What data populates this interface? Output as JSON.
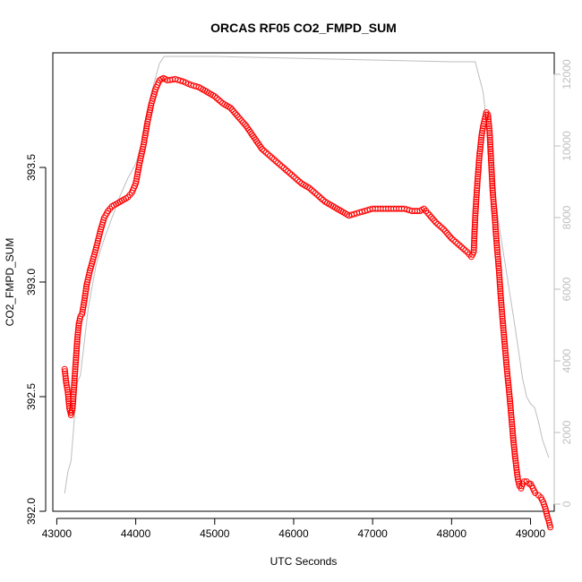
{
  "chart_data": {
    "type": "scatter",
    "title": "ORCAS RF05 CO2_FMPD_SUM",
    "xlabel": "UTC Seconds",
    "ylabel": "CO2_FMPD_SUM",
    "xlim": [
      42950,
      49300
    ],
    "ylim": [
      392.0,
      394.0
    ],
    "y2lim": [
      -200,
      12600
    ],
    "x_ticks": [
      43000,
      44000,
      45000,
      46000,
      47000,
      48000,
      49000
    ],
    "x_tick_labels": [
      "43000",
      "44000",
      "45000",
      "46000",
      "47000",
      "48000",
      "49000"
    ],
    "y_ticks": [
      392.0,
      392.5,
      393.0,
      393.5
    ],
    "y_tick_labels": [
      "392.0",
      "392.5",
      "393.0",
      "393.5"
    ],
    "y2_ticks": [
      0,
      2000,
      4000,
      6000,
      8000,
      10000,
      12000
    ],
    "y2_tick_labels": [
      "0",
      "2000",
      "4000",
      "6000",
      "8000",
      "10000",
      "12000"
    ],
    "grid": false,
    "colors": {
      "co2": "#ff0000",
      "altitude": "#bebebe"
    },
    "series": [
      {
        "marker": "open-circle",
        "axis": "left",
        "points": [
          [
            43100,
            392.62
          ],
          [
            43120,
            392.56
          ],
          [
            43140,
            392.52
          ],
          [
            43160,
            392.45
          ],
          [
            43180,
            392.42
          ],
          [
            43200,
            392.45
          ],
          [
            43220,
            392.55
          ],
          [
            43240,
            392.65
          ],
          [
            43260,
            392.75
          ],
          [
            43280,
            392.82
          ],
          [
            43300,
            392.85
          ],
          [
            43320,
            392.86
          ],
          [
            43350,
            392.92
          ],
          [
            43380,
            392.99
          ],
          [
            43420,
            393.05
          ],
          [
            43460,
            393.1
          ],
          [
            43500,
            393.15
          ],
          [
            43550,
            393.22
          ],
          [
            43600,
            393.28
          ],
          [
            43650,
            393.31
          ],
          [
            43700,
            393.33
          ],
          [
            43750,
            393.34
          ],
          [
            43800,
            393.35
          ],
          [
            43850,
            393.36
          ],
          [
            43900,
            393.37
          ],
          [
            43950,
            393.39
          ],
          [
            44000,
            393.43
          ],
          [
            44050,
            393.52
          ],
          [
            44100,
            393.6
          ],
          [
            44150,
            393.7
          ],
          [
            44200,
            393.78
          ],
          [
            44250,
            393.84
          ],
          [
            44300,
            393.88
          ],
          [
            44350,
            393.89
          ],
          [
            44400,
            393.88
          ],
          [
            44500,
            393.885
          ],
          [
            44600,
            393.875
          ],
          [
            44700,
            393.86
          ],
          [
            44800,
            393.85
          ],
          [
            44900,
            393.83
          ],
          [
            45000,
            393.81
          ],
          [
            45100,
            393.78
          ],
          [
            45200,
            393.76
          ],
          [
            45300,
            393.72
          ],
          [
            45400,
            393.68
          ],
          [
            45500,
            393.63
          ],
          [
            45600,
            393.58
          ],
          [
            45700,
            393.55
          ],
          [
            45800,
            393.52
          ],
          [
            45900,
            393.49
          ],
          [
            46000,
            393.46
          ],
          [
            46100,
            393.43
          ],
          [
            46200,
            393.41
          ],
          [
            46300,
            393.38
          ],
          [
            46400,
            393.35
          ],
          [
            46500,
            393.33
          ],
          [
            46600,
            393.31
          ],
          [
            46700,
            393.29
          ],
          [
            46800,
            393.3
          ],
          [
            46900,
            393.31
          ],
          [
            47000,
            393.32
          ],
          [
            47100,
            393.32
          ],
          [
            47200,
            393.32
          ],
          [
            47300,
            393.32
          ],
          [
            47400,
            393.32
          ],
          [
            47500,
            393.31
          ],
          [
            47600,
            393.31
          ],
          [
            47650,
            393.32
          ],
          [
            47700,
            393.3
          ],
          [
            47800,
            393.26
          ],
          [
            47900,
            393.23
          ],
          [
            48000,
            393.19
          ],
          [
            48100,
            393.16
          ],
          [
            48200,
            393.13
          ],
          [
            48250,
            393.11
          ],
          [
            48280,
            393.13
          ],
          [
            48300,
            393.29
          ],
          [
            48320,
            393.4
          ],
          [
            48350,
            393.54
          ],
          [
            48380,
            393.64
          ],
          [
            48400,
            393.68
          ],
          [
            48420,
            393.71
          ],
          [
            48440,
            393.74
          ],
          [
            48460,
            393.73
          ],
          [
            48480,
            393.66
          ],
          [
            48500,
            393.53
          ],
          [
            48520,
            393.4
          ],
          [
            48540,
            393.31
          ],
          [
            48560,
            393.22
          ],
          [
            48580,
            393.13
          ],
          [
            48600,
            393.05
          ],
          [
            48620,
            392.95
          ],
          [
            48640,
            392.86
          ],
          [
            48660,
            392.78
          ],
          [
            48680,
            392.7
          ],
          [
            48700,
            392.62
          ],
          [
            48720,
            392.55
          ],
          [
            48740,
            392.48
          ],
          [
            48760,
            392.4
          ],
          [
            48780,
            392.32
          ],
          [
            48800,
            392.25
          ],
          [
            48820,
            392.19
          ],
          [
            48840,
            392.14
          ],
          [
            48860,
            392.11
          ],
          [
            48880,
            392.1
          ],
          [
            48900,
            392.12
          ],
          [
            48920,
            392.13
          ],
          [
            48950,
            392.13
          ],
          [
            48980,
            392.12
          ],
          [
            49000,
            392.12
          ],
          [
            49030,
            392.1
          ],
          [
            49060,
            392.08
          ],
          [
            49100,
            392.07
          ],
          [
            49130,
            392.06
          ],
          [
            49160,
            392.04
          ],
          [
            49190,
            392.01
          ],
          [
            49210,
            391.98
          ],
          [
            49230,
            391.96
          ],
          [
            49250,
            391.93
          ]
        ]
      },
      {
        "marker": "line",
        "axis": "right",
        "points": [
          [
            43100,
            300
          ],
          [
            43140,
            900
          ],
          [
            43180,
            1200
          ],
          [
            43260,
            3400
          ],
          [
            43300,
            3600
          ],
          [
            43400,
            5500
          ],
          [
            43500,
            6700
          ],
          [
            43600,
            7400
          ],
          [
            43700,
            8000
          ],
          [
            43800,
            8600
          ],
          [
            43900,
            9100
          ],
          [
            44000,
            9500
          ],
          [
            44100,
            10300
          ],
          [
            44200,
            11500
          ],
          [
            44300,
            12300
          ],
          [
            44360,
            12500
          ],
          [
            45000,
            12500
          ],
          [
            46000,
            12450
          ],
          [
            47000,
            12400
          ],
          [
            48000,
            12350
          ],
          [
            48300,
            12350
          ],
          [
            48400,
            11500
          ],
          [
            48500,
            9500
          ],
          [
            48600,
            7800
          ],
          [
            48700,
            6400
          ],
          [
            48800,
            5000
          ],
          [
            48900,
            3500
          ],
          [
            48950,
            3000
          ],
          [
            49000,
            2800
          ],
          [
            49050,
            2700
          ],
          [
            49100,
            2300
          ],
          [
            49150,
            1800
          ],
          [
            49230,
            1300
          ]
        ]
      }
    ]
  }
}
